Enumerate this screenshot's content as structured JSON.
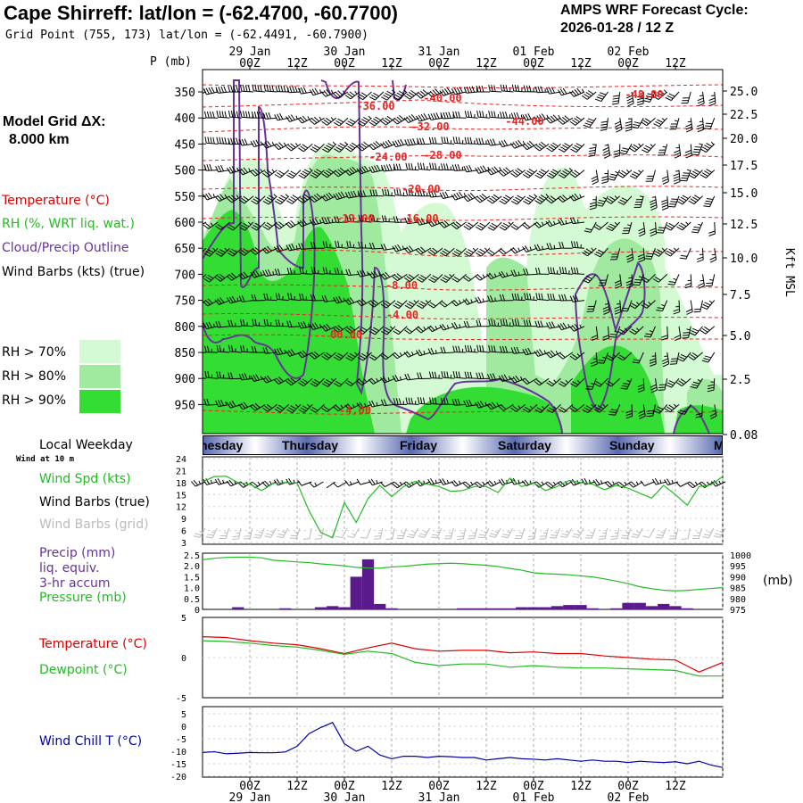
{
  "header": {
    "title": "Cape Shirreff:  lat/lon = (-62.4700, -60.7700)",
    "subtitle": "Grid Point (755, 173) lat/lon = (-62.4491, -60.7900)",
    "cycle_line1": "AMPS WRF Forecast Cycle:",
    "cycle_line2": "2026-01-28 / 12  Z"
  },
  "legend": {
    "grid_line1": "Model Grid ΔX:",
    "grid_line2": "8.000 km",
    "temperature": "Temperature (°C)",
    "rh": "RH (%, WRT liq. wat.)",
    "cloud": "Cloud/Precip Outline",
    "wind": "Wind Barbs (kts) (true)",
    "rh70": "RH > 70%",
    "rh80": "RH > 80%",
    "rh90": "RH > 90%",
    "rh70_color": "#d4fad4",
    "rh80_color": "#a0eaa0",
    "rh90_color": "#33dd33"
  },
  "panel_labels": {
    "local_weekday": "Local Weekday",
    "wind_at": "Wind at 10 m",
    "wind_spd": "Wind Spd (kts)",
    "wind_barbs_true": "Wind Barbs (true)",
    "wind_barbs_grid": "Wind Barbs (grid)",
    "precip1": "Precip (mm)",
    "precip2": "liq. equiv.",
    "precip3": "3-hr accum",
    "pressure": "Pressure (mb)",
    "mb_unit": "(mb)",
    "temperature": "Temperature (°C)",
    "dewpoint": "Dewpoint (°C)",
    "windchill": "Wind Chill T (°C)"
  },
  "weekdays": [
    "nesday",
    "Thursday",
    "Friday",
    "Saturday",
    "Sunday",
    "M"
  ],
  "time_axis": {
    "ticks": [
      "00Z",
      "12Z",
      "00Z",
      "12Z",
      "00Z",
      "12Z",
      "00Z",
      "12Z",
      "00Z",
      "12Z"
    ],
    "dates": [
      "29 Jan",
      "30 Jan",
      "31 Jan",
      "01 Feb",
      "02 Feb"
    ]
  },
  "chart_data": [
    {
      "type": "area",
      "title": "",
      "ylabel_left": "P (mb)",
      "ylabel_right": "Kft MSL",
      "x_hours_from_cycle": [
        0,
        12,
        24,
        36,
        48,
        60,
        72,
        84,
        96,
        108,
        120,
        132
      ],
      "pressure_ticks": [
        "350",
        "400",
        "450",
        "500",
        "550",
        "600",
        "650",
        "700",
        "750",
        "800",
        "850",
        "900",
        "950"
      ],
      "kft_ticks": [
        "25.0",
        "22.5",
        "20.0",
        "17.5",
        "15.0",
        "12.5",
        "10.0",
        "7.5",
        "5.0",
        "2.5",
        "0.08"
      ],
      "temperature_labels": [
        "-48.00",
        "-40.00",
        "-44.00",
        "-36.00",
        "-32.00",
        "-28.00",
        "-24.00",
        "-20.00",
        "-16.00",
        "-12.00",
        "-8.00",
        "-4.00",
        "00.00",
        "-4.00"
      ]
    },
    {
      "type": "line",
      "title": "",
      "ylabel": "Wind Spd (kts)",
      "yticks": [
        "24",
        "21",
        "18",
        "15",
        "12",
        "9",
        "6",
        "3"
      ],
      "ylim": [
        3,
        24
      ],
      "x_hours": [
        0,
        3,
        6,
        9,
        12,
        15,
        18,
        21,
        24,
        27,
        30,
        33,
        36,
        39,
        42,
        45,
        48,
        51,
        54,
        57,
        60,
        63,
        66,
        69,
        72,
        75,
        78,
        81,
        84,
        87,
        90,
        93,
        96,
        99,
        102,
        105,
        108,
        111,
        114,
        117,
        120,
        123,
        126,
        129,
        132
      ],
      "series": [
        {
          "values": [
            18.2,
            19.5,
            19.6,
            18.0,
            17.6,
            16.0,
            17.8,
            18.0,
            17.9,
            11.0,
            5.5,
            4.2,
            13.0,
            8.0,
            14.0,
            17.3,
            14.5,
            17.0,
            18.3,
            17.6,
            17.0,
            15.8,
            16.0,
            17.0,
            17.0,
            15.5,
            19.1,
            17.0,
            18.0,
            16.0,
            17.0,
            18.5,
            18.0,
            17.6,
            16.2,
            17.3,
            16.6,
            15.3,
            14.1,
            17.3,
            15.0,
            12.3,
            17.0,
            17.4,
            19.5
          ]
        }
      ]
    },
    {
      "type": "bar",
      "title": "",
      "ylabel": "Precip (mm)",
      "yticks_left": [
        "2.5",
        "2.0",
        "1.5",
        "1.0",
        "0.5",
        "0"
      ],
      "ylim_left": [
        0,
        2.5
      ],
      "yticks_right": [
        "1000",
        "995",
        "990",
        "985",
        "980",
        "975"
      ],
      "ylim_right": [
        975,
        1000
      ],
      "x_hours": [
        0,
        3,
        6,
        9,
        12,
        15,
        18,
        21,
        24,
        27,
        30,
        33,
        36,
        39,
        42,
        45,
        48,
        51,
        54,
        57,
        60,
        63,
        66,
        69,
        72,
        75,
        78,
        81,
        84,
        87,
        90,
        93,
        96,
        99,
        102,
        105,
        108,
        111,
        114,
        117,
        120,
        123,
        126,
        129,
        132
      ],
      "series": [
        {
          "name": "Precip (mm)",
          "values": [
            0,
            0,
            0,
            0.1,
            0,
            0,
            0,
            0.05,
            0,
            0,
            0.1,
            0.15,
            0.1,
            1.5,
            2.3,
            0.25,
            0.05,
            0,
            0,
            0,
            0,
            0,
            0.05,
            0.05,
            0.05,
            0.05,
            0.05,
            0.1,
            0.1,
            0.1,
            0.15,
            0.2,
            0.2,
            0.05,
            0,
            0.05,
            0.3,
            0.3,
            0.15,
            0.25,
            0.15,
            0.05,
            0,
            0,
            0
          ]
        },
        {
          "name": "Pressure (mb)",
          "values": [
            997.8,
            998.5,
            998.9,
            999.0,
            999.0,
            998.7,
            997.6,
            997.2,
            996.8,
            996.5,
            995.9,
            995.5,
            995.0,
            994.3,
            994.0,
            993.9,
            994.5,
            994.8,
            995.3,
            995.8,
            996.0,
            996.2,
            996.0,
            995.6,
            995.3,
            994.7,
            993.8,
            993.0,
            991.8,
            991.4,
            991.2,
            990.9,
            990.4,
            989.9,
            989.0,
            988.0,
            986.8,
            985.4,
            984.5,
            983.8,
            983.5,
            983.7,
            984.2,
            984.6,
            985.0
          ]
        }
      ]
    },
    {
      "type": "line",
      "title": "",
      "yticks": [
        "5",
        "0",
        "-5"
      ],
      "ylim": [
        -5,
        5
      ],
      "x_hours": [
        0,
        6,
        12,
        18,
        24,
        30,
        36,
        42,
        48,
        54,
        60,
        66,
        72,
        78,
        84,
        90,
        96,
        102,
        108,
        114,
        120,
        126,
        132
      ],
      "series": [
        {
          "name": "Temperature (°C)",
          "values": [
            2.6,
            2.5,
            2.1,
            1.8,
            1.6,
            1.1,
            0.5,
            1.2,
            1.8,
            1.1,
            0.8,
            0.9,
            0.9,
            0.6,
            0.7,
            0.5,
            0.5,
            0.2,
            0.0,
            -0.2,
            -0.3,
            -1.8,
            -0.6
          ]
        },
        {
          "name": "Dewpoint (°C)",
          "values": [
            2.1,
            2.0,
            1.8,
            1.5,
            1.3,
            0.9,
            0.4,
            0.8,
            0.5,
            -0.6,
            -1.0,
            -0.8,
            -0.8,
            -1.2,
            -1.0,
            -1.2,
            -1.3,
            -1.3,
            -1.4,
            -1.5,
            -1.6,
            -2.3,
            -2.3
          ]
        }
      ]
    },
    {
      "type": "line",
      "title": "",
      "yticks": [
        "5",
        "0",
        "-5",
        "-10",
        "-15",
        "-20"
      ],
      "ylim": [
        -20,
        5
      ],
      "x_hours": [
        0,
        3,
        6,
        9,
        12,
        15,
        18,
        21,
        24,
        27,
        30,
        33,
        36,
        39,
        42,
        45,
        48,
        51,
        54,
        57,
        60,
        63,
        66,
        69,
        72,
        75,
        78,
        81,
        84,
        87,
        90,
        93,
        96,
        99,
        102,
        105,
        108,
        111,
        114,
        117,
        120,
        123,
        126,
        129,
        132
      ],
      "series": [
        {
          "name": "Wind Chill T (°C)",
          "values": [
            -10.5,
            -10.2,
            -11.0,
            -10.8,
            -10.5,
            -10.6,
            -10.6,
            -10.3,
            -8.0,
            -3.0,
            -0.5,
            1.5,
            -7.0,
            -10.0,
            -8.0,
            -11.5,
            -13.0,
            -12.0,
            -12.0,
            -12.5,
            -12.0,
            -12.2,
            -12.5,
            -12.5,
            -13.5,
            -13.0,
            -12.5,
            -13.0,
            -13.2,
            -13.5,
            -13.0,
            -13.5,
            -14.0,
            -13.5,
            -14.0,
            -14.0,
            -14.5,
            -14.0,
            -14.3,
            -14.5,
            -14.2,
            -15.0,
            -14.0,
            -15.5,
            -16.5
          ]
        }
      ]
    }
  ]
}
